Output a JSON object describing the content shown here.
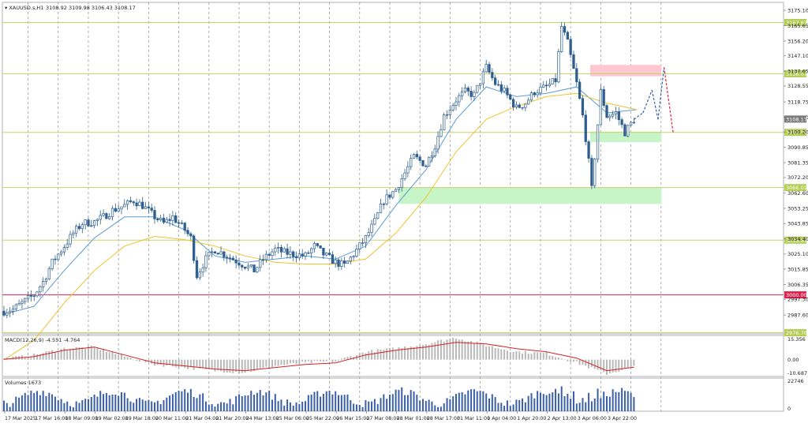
{
  "header": {
    "symbol_label": "▾ XAUUSD.s,H1",
    "ohlc_label": "3108.92 3109.98 3106.43 3108.17"
  },
  "price_axis": {
    "ticks": [
      "3175.10",
      "3165.65",
      "3156.20",
      "3147.10",
      "3137.65",
      "3128.55",
      "3118.75",
      "3109.30",
      "3100.20",
      "3090.85",
      "3081.35",
      "3072.20",
      "3062.60",
      "3053.25",
      "3043.85",
      "3034.40",
      "3025.10",
      "3015.85",
      "3006.35",
      "2997.30",
      "2987.60"
    ]
  },
  "levels": [
    {
      "label": "3167.62",
      "price": 3167.62,
      "color": "#c8d36a",
      "tag": "#b5cc55"
    },
    {
      "label": "3136.07",
      "price": 3136.07,
      "color": "#c8d36a",
      "tag": "#b5cc55"
    },
    {
      "label": "3100.00",
      "price": 3100.0,
      "color": "#c8d36a",
      "tag": "#b5cc55"
    },
    {
      "label": "3066.01",
      "price": 3066.01,
      "color": "#c8d36a",
      "tag": "#b5cc55"
    },
    {
      "label": "3033.67",
      "price": 3033.67,
      "color": "#c8d36a",
      "tag": "#b5cc55"
    },
    {
      "label": "3000.00",
      "price": 3000.0,
      "color": "#e0204a",
      "tag": "#e0204a"
    },
    {
      "label": "2976.70",
      "price": 2976.7,
      "color": "#c8d36a",
      "tag": "#b5cc55"
    }
  ],
  "current_price": {
    "label": "3108.17",
    "price": 3108.17
  },
  "zones": [
    {
      "kind": "supply",
      "color": "#ffc8d0",
      "x_from": "3 Apr 06:00",
      "price_from": 3134.5,
      "price_to": 3141.5
    },
    {
      "kind": "demand",
      "color": "#c8f5c8",
      "x_from": "3 Apr 06:00",
      "price_from": 3094.0,
      "price_to": 3100.5
    },
    {
      "kind": "demand",
      "color": "#c8f5c8",
      "x_from": "28 Mar 01:00",
      "price_from": 3056.0,
      "price_to": 3066.0
    }
  ],
  "macd_panel": {
    "label": "MACD(12,26,9) -4.551 -4.764",
    "ticks": [
      "15.356",
      "0.00",
      "-10.687"
    ]
  },
  "volume_panel": {
    "label": "Volumes 1673",
    "ticks": [
      "22746",
      "0"
    ]
  },
  "time_axis": {
    "labels": [
      "17 Mar 2025",
      "17 Mar 16:00",
      "18 Mar 09:00",
      "19 Mar 02:00",
      "19 Mar 18:00",
      "20 Mar 11:00",
      "21 Mar 04:00",
      "21 Mar 20:00",
      "24 Mar 13:00",
      "25 Mar 06:00",
      "25 Mar 22:00",
      "26 Mar 15:00",
      "27 Mar 08:00",
      "28 Mar 01:00",
      "28 Mar 17:00",
      "31 Mar 11:00",
      "1 Apr 04:00",
      "1 Apr 20:00",
      "2 Apr 13:00",
      "3 Apr 06:00",
      "3 Apr 22:00"
    ]
  },
  "chart_data": {
    "type": "candlestick",
    "symbol": "XAUUSD.s",
    "timeframe": "H1",
    "ylim": [
      2976,
      3180
    ],
    "x_categories": [
      "17 Mar 2025",
      "17 Mar 16:00",
      "18 Mar 09:00",
      "19 Mar 02:00",
      "19 Mar 18:00",
      "20 Mar 11:00",
      "21 Mar 04:00",
      "21 Mar 20:00",
      "24 Mar 13:00",
      "25 Mar 06:00",
      "25 Mar 22:00",
      "26 Mar 15:00",
      "27 Mar 08:00",
      "28 Mar 01:00",
      "28 Mar 17:00",
      "31 Mar 11:00",
      "1 Apr 04:00",
      "1 Apr 20:00",
      "2 Apr 13:00",
      "3 Apr 06:00",
      "3 Apr 22:00"
    ],
    "close_path": [
      [
        0,
        2990
      ],
      [
        0.3,
        2991
      ],
      [
        0.6,
        2995
      ],
      [
        1,
        3000
      ],
      [
        1.3,
        3008
      ],
      [
        1.6,
        3020
      ],
      [
        2,
        3030
      ],
      [
        2.3,
        3038
      ],
      [
        2.6,
        3044
      ],
      [
        3,
        3045
      ],
      [
        3.3,
        3048
      ],
      [
        3.6,
        3052
      ],
      [
        4,
        3055
      ],
      [
        4.3,
        3058
      ],
      [
        4.6,
        3055
      ],
      [
        5,
        3048
      ],
      [
        5.3,
        3044
      ],
      [
        5.6,
        3048
      ],
      [
        6,
        3040
      ],
      [
        6.2,
        3035
      ],
      [
        6.4,
        3012
      ],
      [
        6.7,
        3022
      ],
      [
        7,
        3028
      ],
      [
        7.3,
        3025
      ],
      [
        7.6,
        3022
      ],
      [
        8,
        3018
      ],
      [
        8.3,
        3015
      ],
      [
        8.6,
        3022
      ],
      [
        9,
        3028
      ],
      [
        9.3,
        3026
      ],
      [
        9.6,
        3025
      ],
      [
        10,
        3024
      ],
      [
        10.3,
        3030
      ],
      [
        10.6,
        3025
      ],
      [
        11,
        3020
      ],
      [
        11.3,
        3018
      ],
      [
        11.6,
        3025
      ],
      [
        12,
        3035
      ],
      [
        12.3,
        3045
      ],
      [
        12.6,
        3058
      ],
      [
        13,
        3065
      ],
      [
        13.3,
        3075
      ],
      [
        13.6,
        3085
      ],
      [
        14,
        3080
      ],
      [
        14.3,
        3092
      ],
      [
        14.6,
        3110
      ],
      [
        15,
        3120
      ],
      [
        15.3,
        3125
      ],
      [
        15.6,
        3123
      ],
      [
        16,
        3140
      ],
      [
        16.3,
        3130
      ],
      [
        16.6,
        3125
      ],
      [
        17,
        3115
      ],
      [
        17.3,
        3118
      ],
      [
        17.6,
        3125
      ],
      [
        18,
        3128
      ],
      [
        18.3,
        3132
      ],
      [
        18.5,
        3165
      ],
      [
        18.7,
        3155
      ],
      [
        19,
        3130
      ],
      [
        19.2,
        3110
      ],
      [
        19.35,
        3090
      ],
      [
        19.5,
        3065
      ],
      [
        19.6,
        3085
      ],
      [
        19.8,
        3125
      ],
      [
        20,
        3110
      ],
      [
        20.3,
        3112
      ],
      [
        20.6,
        3100
      ],
      [
        20.9,
        3108
      ]
    ],
    "forecast_path": [
      [
        20.9,
        3108
      ],
      [
        21.2,
        3112
      ],
      [
        21.5,
        3126
      ],
      [
        21.7,
        3108
      ],
      [
        21.9,
        3140
      ],
      [
        22.2,
        3100
      ]
    ],
    "series_ma": [
      {
        "name": "",
        "color": "#5b9bd5",
        "points": [
          [
            0,
            2988
          ],
          [
            1,
            2993
          ],
          [
            2,
            3015
          ],
          [
            3,
            3035
          ],
          [
            4,
            3048
          ],
          [
            5,
            3048
          ],
          [
            6,
            3040
          ],
          [
            7,
            3024
          ],
          [
            8,
            3020
          ],
          [
            9,
            3022
          ],
          [
            10,
            3024
          ],
          [
            11,
            3022
          ],
          [
            12,
            3030
          ],
          [
            13,
            3055
          ],
          [
            14,
            3077
          ],
          [
            15,
            3108
          ],
          [
            16,
            3128
          ],
          [
            17,
            3122
          ],
          [
            18,
            3124
          ],
          [
            19,
            3128
          ],
          [
            20,
            3112
          ],
          [
            21,
            3114
          ]
        ]
      },
      {
        "name": "",
        "color": "#f2c12e",
        "points": [
          [
            0,
            2960
          ],
          [
            1,
            2972
          ],
          [
            2,
            2995
          ],
          [
            3,
            3015
          ],
          [
            4,
            3030
          ],
          [
            5,
            3036
          ],
          [
            6,
            3034
          ],
          [
            7,
            3030
          ],
          [
            8,
            3024
          ],
          [
            9,
            3020
          ],
          [
            10,
            3019
          ],
          [
            11,
            3019
          ],
          [
            12,
            3022
          ],
          [
            13,
            3038
          ],
          [
            14,
            3060
          ],
          [
            15,
            3088
          ],
          [
            16,
            3108
          ],
          [
            17,
            3116
          ],
          [
            18,
            3122
          ],
          [
            19,
            3124
          ],
          [
            20,
            3118
          ],
          [
            21,
            3114
          ]
        ]
      }
    ],
    "macd_signal": [
      [
        0,
        0.2
      ],
      [
        1,
        2
      ],
      [
        2,
        6
      ],
      [
        3,
        8
      ],
      [
        4,
        3
      ],
      [
        5,
        -2
      ],
      [
        6,
        -4
      ],
      [
        7,
        -6
      ],
      [
        8,
        -7
      ],
      [
        9,
        -5
      ],
      [
        10,
        -3
      ],
      [
        11,
        -2
      ],
      [
        12,
        3
      ],
      [
        13,
        6
      ],
      [
        14,
        8
      ],
      [
        15,
        11
      ],
      [
        16,
        10
      ],
      [
        17,
        7
      ],
      [
        18,
        5
      ],
      [
        19,
        1
      ],
      [
        20,
        -7
      ],
      [
        20.9,
        -4.76
      ]
    ],
    "macd_hist": [
      [
        0,
        0.5
      ],
      [
        1,
        3
      ],
      [
        2,
        7
      ],
      [
        3,
        8
      ],
      [
        4,
        2
      ],
      [
        5,
        -3
      ],
      [
        6,
        -5
      ],
      [
        7,
        -7
      ],
      [
        8,
        -8
      ],
      [
        9,
        -4
      ],
      [
        10,
        -2
      ],
      [
        11,
        -1
      ],
      [
        12,
        5
      ],
      [
        13,
        7
      ],
      [
        14,
        10
      ],
      [
        15,
        14
      ],
      [
        16,
        9
      ],
      [
        17,
        5
      ],
      [
        18,
        4
      ],
      [
        19,
        -2
      ],
      [
        20,
        -9
      ],
      [
        20.9,
        -4.55
      ]
    ],
    "volume_current": 1673,
    "volume_max": 22746
  }
}
